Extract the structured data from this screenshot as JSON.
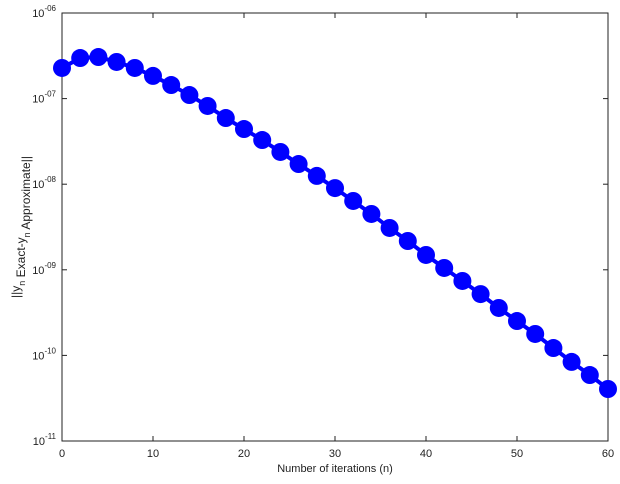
{
  "chart_data": {
    "type": "line",
    "xlabel": "Number of iterations (n)",
    "ylabel": "||y_n Exact-y_n Approximate||",
    "x": [
      0,
      2,
      4,
      6,
      8,
      10,
      12,
      14,
      16,
      18,
      20,
      22,
      24,
      26,
      28,
      30,
      32,
      34,
      36,
      38,
      40,
      42,
      44,
      46,
      48,
      50,
      52,
      54,
      56,
      58,
      60
    ],
    "series": [
      {
        "color": "#0000ff",
        "values": [
          2.28e-07,
          2.98e-07,
          3.06e-07,
          2.68e-07,
          2.28e-07,
          1.84e-07,
          1.44e-07,
          1.1e-07,
          8.2e-08,
          5.93e-08,
          4.41e-08,
          3.28e-08,
          2.38e-08,
          1.72e-08,
          1.25e-08,
          9e-09,
          6.37e-09,
          4.49e-09,
          3.08e-09,
          2.17e-09,
          1.49e-09,
          1.05e-09,
          7.4e-10,
          5.2e-10,
          3.58e-10,
          2.52e-10,
          1.78e-10,
          1.22e-10,
          8.4e-11,
          5.9e-11,
          4.05e-11
        ]
      }
    ],
    "xlim": [
      0,
      60
    ],
    "xticks": [
      0,
      10,
      20,
      30,
      40,
      50,
      60
    ],
    "ylim": [
      1e-11,
      1e-06
    ],
    "ylog": true,
    "yticks": [
      {
        "value": 1e-11,
        "label": "10^-11"
      },
      {
        "value": 1e-10,
        "label": "10^-10"
      },
      {
        "value": 1e-09,
        "label": "10^-09"
      },
      {
        "value": 1e-08,
        "label": "10^-08"
      },
      {
        "value": 1e-07,
        "label": "10^-07"
      },
      {
        "value": 1e-06,
        "label": "10^-06"
      }
    ],
    "grid": false
  }
}
